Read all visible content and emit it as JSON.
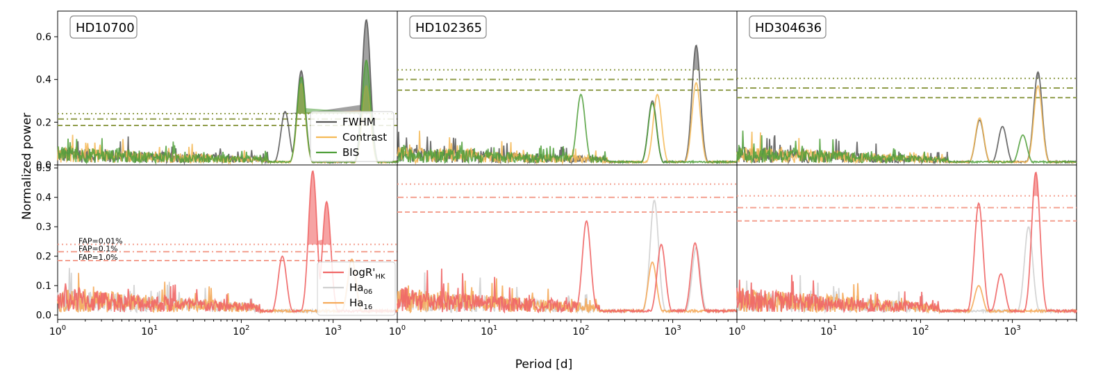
{
  "figure": {
    "ylabel": "Normalized power",
    "xlabel": "Period [d]"
  },
  "panel_titles": [
    "HD10700",
    "HD102365",
    "HD304636"
  ],
  "fap_labels": [
    "FAP=0.01%",
    "FAP=0.1%",
    "FAP=1.0%"
  ],
  "x_tick_labels": [
    "10",
    "10",
    "10",
    "10"
  ],
  "x_tick_exponents": [
    "0",
    "1",
    "2",
    "3"
  ],
  "top_y_ticks": [
    "0.0",
    "0.2",
    "0.4",
    "0.6"
  ],
  "bottom_y_ticks": [
    "0.0",
    "0.1",
    "0.2",
    "0.3",
    "0.4",
    "0.5"
  ],
  "legend_top": [
    {
      "label": "FWHM",
      "color": "#555555"
    },
    {
      "label": "Contrast",
      "color": "#f5b955"
    },
    {
      "label": "BIS",
      "color": "#4f9f3a"
    }
  ],
  "legend_bottom": [
    {
      "label": "logR'",
      "sub": "HK",
      "color": "#f06666"
    },
    {
      "label": "Ha",
      "sub": "06",
      "color": "#d0d0d0"
    },
    {
      "label": "Ha",
      "sub": "16",
      "color": "#f5aa5a"
    }
  ],
  "colors": {
    "fwhm": "#555555",
    "contrast": "#f5b955",
    "bis": "#4f9f3a",
    "activity_fill": "#6b8e23",
    "fap_top": "#8f9c4a",
    "logr": "#f06666",
    "ha06": "#d0d0d0",
    "ha16": "#f5aa5a",
    "activity_fill_bottom": "#f08a4b",
    "fap_bottom": "#f4a090"
  },
  "chart_data": [
    {
      "type": "line",
      "panel": "top-1",
      "title": "HD10700",
      "xscale": "log",
      "xlim": [
        1,
        5000
      ],
      "ylim": [
        0,
        0.72
      ],
      "fap_levels": [
        0.24,
        0.215,
        0.185
      ],
      "series": [
        {
          "name": "FWHM",
          "peaks": [
            [
              300,
              0.25
            ],
            [
              450,
              0.44
            ],
            [
              2300,
              0.68
            ]
          ]
        },
        {
          "name": "Contrast",
          "peaks": [
            [
              450,
              0.38
            ],
            [
              2300,
              0.37
            ]
          ]
        },
        {
          "name": "BIS",
          "peaks": [
            [
              450,
              0.41
            ],
            [
              2300,
              0.49
            ]
          ]
        }
      ]
    },
    {
      "type": "line",
      "panel": "top-2",
      "title": "HD102365",
      "xscale": "log",
      "xlim": [
        1,
        5000
      ],
      "ylim": [
        0,
        0.72
      ],
      "fap_levels": [
        0.445,
        0.4,
        0.35
      ],
      "series": [
        {
          "name": "FWHM",
          "peaks": [
            [
              600,
              0.3
            ],
            [
              1800,
              0.56
            ]
          ]
        },
        {
          "name": "Contrast",
          "peaks": [
            [
              680,
              0.33
            ],
            [
              1800,
              0.385
            ]
          ]
        },
        {
          "name": "BIS",
          "peaks": [
            [
              100,
              0.33
            ],
            [
              600,
              0.29
            ]
          ]
        }
      ]
    },
    {
      "type": "line",
      "panel": "top-3",
      "title": "HD304636",
      "xscale": "log",
      "xlim": [
        1,
        5000
      ],
      "ylim": [
        0,
        0.72
      ],
      "fap_levels": [
        0.405,
        0.36,
        0.315
      ],
      "series": [
        {
          "name": "FWHM",
          "peaks": [
            [
              440,
              0.21
            ],
            [
              780,
              0.18
            ],
            [
              1900,
              0.435
            ]
          ]
        },
        {
          "name": "Contrast",
          "peaks": [
            [
              440,
              0.22
            ],
            [
              1900,
              0.37
            ]
          ]
        },
        {
          "name": "BIS",
          "peaks": [
            [
              1300,
              0.14
            ]
          ]
        }
      ]
    },
    {
      "type": "line",
      "panel": "bottom-1",
      "xscale": "log",
      "xlim": [
        1,
        5000
      ],
      "ylim": [
        -0.015,
        0.51
      ],
      "fap_levels": [
        0.24,
        0.215,
        0.185
      ],
      "series": [
        {
          "name": "logR'HK",
          "peaks": [
            [
              600,
              0.49
            ],
            [
              850,
              0.385
            ],
            [
              280,
              0.2
            ]
          ]
        },
        {
          "name": "Ha06",
          "peaks": [
            [
              1600,
              0.16
            ]
          ]
        },
        {
          "name": "Ha16",
          "peaks": [
            [
              1600,
              0.19
            ]
          ]
        }
      ]
    },
    {
      "type": "line",
      "panel": "bottom-2",
      "xscale": "log",
      "xlim": [
        1,
        5000
      ],
      "ylim": [
        -0.015,
        0.51
      ],
      "fap_levels": [
        0.445,
        0.4,
        0.35
      ],
      "series": [
        {
          "name": "logR'HK",
          "peaks": [
            [
              115,
              0.32
            ],
            [
              750,
              0.24
            ],
            [
              1750,
              0.245
            ]
          ]
        },
        {
          "name": "Ha06",
          "peaks": [
            [
              630,
              0.39
            ],
            [
              1800,
              0.23
            ]
          ]
        },
        {
          "name": "Ha16",
          "peaks": [
            [
              600,
              0.18
            ]
          ]
        }
      ]
    },
    {
      "type": "line",
      "panel": "bottom-3",
      "xscale": "log",
      "xlim": [
        1,
        5000
      ],
      "ylim": [
        -0.015,
        0.51
      ],
      "fap_levels": [
        0.405,
        0.365,
        0.32
      ],
      "series": [
        {
          "name": "logR'HK",
          "peaks": [
            [
              430,
              0.38
            ],
            [
              750,
              0.14
            ],
            [
              1800,
              0.485
            ]
          ]
        },
        {
          "name": "Ha06",
          "peaks": [
            [
              1500,
              0.3
            ]
          ]
        },
        {
          "name": "Ha16",
          "peaks": [
            [
              430,
              0.1
            ]
          ]
        }
      ]
    }
  ]
}
